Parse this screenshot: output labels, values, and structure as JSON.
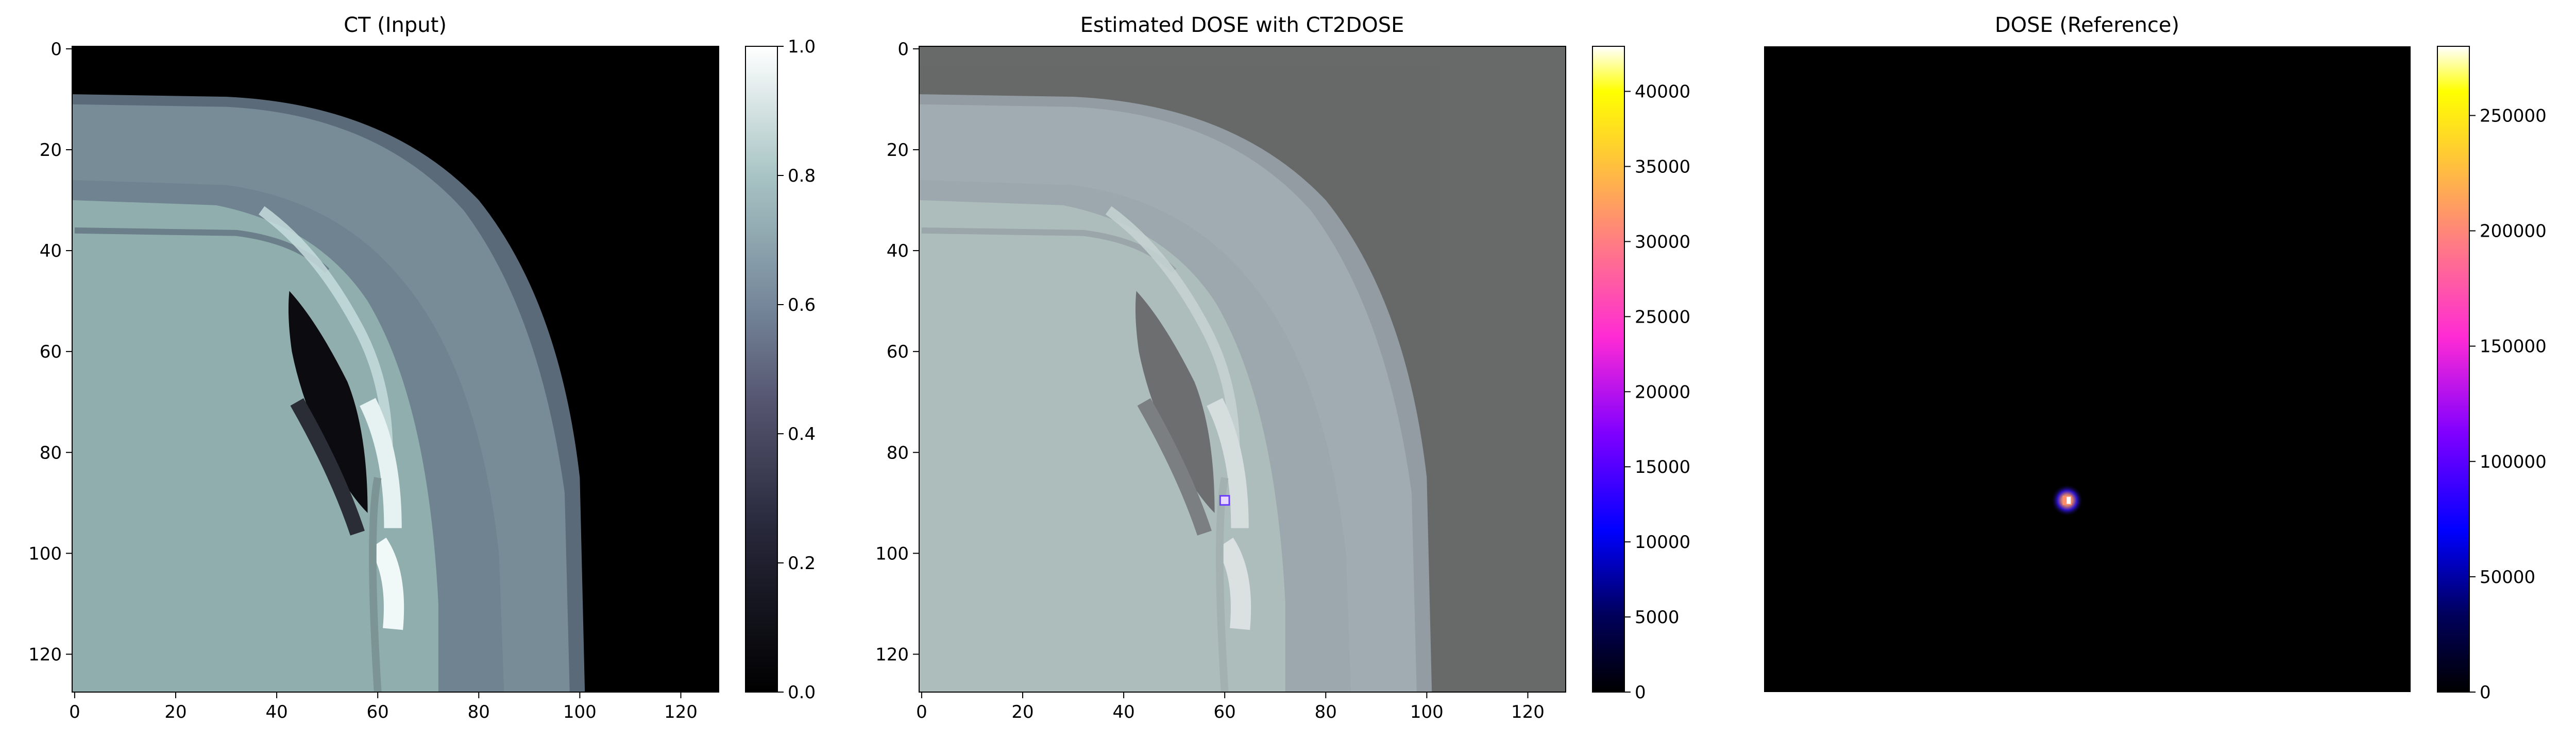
{
  "chart_data": [
    {
      "type": "heatmap",
      "title": "CT (Input)",
      "image": "ct-slice",
      "colormap": "bone",
      "x_ticks": [
        0,
        20,
        40,
        60,
        80,
        100,
        120
      ],
      "y_ticks": [
        0,
        20,
        40,
        60,
        80,
        100,
        120
      ],
      "xlim": [
        -0.5,
        127.5
      ],
      "ylim": [
        127.5,
        -0.5
      ],
      "axes_visible": true,
      "colorbar": {
        "min": 0.0,
        "max": 1.0,
        "ticks": [
          "0.0",
          "0.2",
          "0.4",
          "0.6",
          "0.8",
          "1.0"
        ],
        "tick_values": [
          0,
          0.2,
          0.4,
          0.6,
          0.8,
          1.0
        ]
      }
    },
    {
      "type": "heatmap",
      "title": "Estimated DOSE with CT2DOSE",
      "image": "ct-slice-with-dose-overlay",
      "colormap": "gnuplot2",
      "x_ticks": [
        0,
        20,
        40,
        60,
        80,
        100,
        120
      ],
      "y_ticks": [
        0,
        20,
        40,
        60,
        80,
        100,
        120
      ],
      "xlim": [
        -0.5,
        127.5
      ],
      "ylim": [
        127.5,
        -0.5
      ],
      "axes_visible": true,
      "hotspot": {
        "x": 60,
        "y": 89.5
      },
      "colorbar": {
        "min": 0,
        "max": 43000,
        "ticks": [
          "0",
          "5000",
          "10000",
          "15000",
          "20000",
          "25000",
          "30000",
          "35000",
          "40000"
        ],
        "tick_values": [
          0,
          5000,
          10000,
          15000,
          20000,
          25000,
          30000,
          35000,
          40000
        ]
      }
    },
    {
      "type": "heatmap",
      "title": "DOSE (Reference)",
      "image": "reference-dose",
      "colormap": "gnuplot2",
      "xlim": [
        -0.5,
        127.5
      ],
      "ylim": [
        127.5,
        -0.5
      ],
      "axes_visible": false,
      "hotspot": {
        "x": 59.5,
        "y": 89.5
      },
      "colorbar": {
        "min": 0,
        "max": 280000,
        "ticks": [
          "0",
          "50000",
          "100000",
          "150000",
          "200000",
          "250000"
        ],
        "tick_values": [
          0,
          50000,
          100000,
          150000,
          200000,
          250000
        ]
      }
    }
  ]
}
